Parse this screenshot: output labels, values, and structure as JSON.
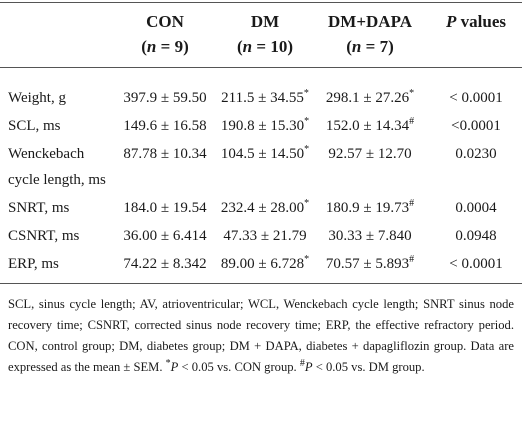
{
  "table": {
    "header": [
      {
        "name": "CON",
        "n_open": "(",
        "n": "n",
        "n_close": " = 9)"
      },
      {
        "name": "DM",
        "n_open": "(",
        "n": "n",
        "n_close": " = 10)"
      },
      {
        "name": "DM+DAPA",
        "n_open": "(",
        "n": "n",
        "n_close": " = 7)"
      },
      {
        "name_italic": "P",
        "name": " values"
      }
    ],
    "rows": [
      {
        "label": "Weight, g",
        "cells": [
          {
            "text": "397.9 ± 59.50"
          },
          {
            "text": "211.5 ± 34.55",
            "sup": "*"
          },
          {
            "text": "298.1 ± 27.26",
            "sup": "*"
          },
          {
            "text": "< 0.0001"
          }
        ]
      },
      {
        "label": "SCL, ms",
        "cells": [
          {
            "text": "149.6 ± 16.58"
          },
          {
            "text": "190.8 ± 15.30",
            "sup": "*"
          },
          {
            "text": "152.0 ± 14.34",
            "sup": "#"
          },
          {
            "text": "<0.0001"
          }
        ]
      },
      {
        "label": "Wenckebach cycle length, ms",
        "cells": [
          {
            "text": "87.78 ± 10.34"
          },
          {
            "text": "104.5 ± 14.50",
            "sup": "*"
          },
          {
            "text": "92.57 ± 12.70"
          },
          {
            "text": "0.0230"
          }
        ]
      },
      {
        "label": "SNRT, ms",
        "cells": [
          {
            "text": "184.0 ± 19.54"
          },
          {
            "text": "232.4 ± 28.00",
            "sup": "*"
          },
          {
            "text": "180.9 ± 19.73",
            "sup": "#"
          },
          {
            "text": "0.0004"
          }
        ]
      },
      {
        "label": "CSNRT, ms",
        "cells": [
          {
            "text": "36.00 ± 6.414"
          },
          {
            "text": "47.33 ± 21.79"
          },
          {
            "text": "30.33 ± 7.840"
          },
          {
            "text": "0.0948"
          }
        ]
      },
      {
        "label": "ERP, ms",
        "cells": [
          {
            "text": "74.22 ± 8.342"
          },
          {
            "text": "89.00 ± 6.728",
            "sup": "*"
          },
          {
            "text": "70.57 ± 5.893",
            "sup": "#"
          },
          {
            "text": "< 0.0001"
          }
        ]
      }
    ]
  },
  "footnote": [
    "SCL, sinus cycle length; AV, atrioventricular; WCL, Wenckebach cycle length; SNRT sinus node recovery time; CSNRT, corrected sinus node recovery time; ERP, the effective refractory period. CON, control group; DM, diabetes group; DM + DAPA, diabetes + dapagliflozin group. Data are expressed as the mean ± SEM. ",
    "*",
    "P",
    " < 0.05 vs. CON group. ",
    "#",
    "P",
    " < 0.05 vs. DM group."
  ]
}
